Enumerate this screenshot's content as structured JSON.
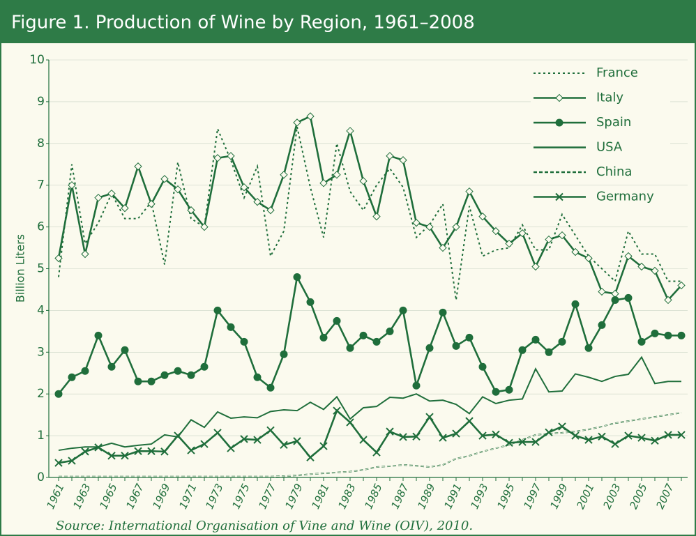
{
  "chart_data": {
    "type": "line",
    "title": "Figure 1. Production of Wine by Region, 1961–2008",
    "ylabel": "Billion Liters",
    "source": "Source: International Organisation of Vine and Wine (OIV), 2010.",
    "categories": [
      "1961",
      null,
      "1963",
      null,
      "1965",
      null,
      "1967",
      null,
      "1969",
      null,
      "1971",
      null,
      "1973",
      null,
      "1975",
      null,
      "1977",
      null,
      "1979",
      null,
      "1981",
      null,
      "1983",
      null,
      "1985",
      null,
      "1987",
      null,
      "1989",
      null,
      "1991",
      null,
      "1993",
      null,
      "1995",
      null,
      "1997",
      null,
      "1999",
      null,
      "2001",
      null,
      "2003",
      null,
      "2005",
      null,
      "2007",
      null
    ],
    "ylim": [
      0,
      10
    ],
    "yticks": [
      0,
      1,
      2,
      3,
      4,
      5,
      6,
      7,
      8,
      9,
      10
    ],
    "grid": true,
    "legend_position": "upper right",
    "series": [
      {
        "name": "France",
        "color": "#1f6e3b",
        "line_style": "dotted",
        "marker": null,
        "values": [
          4.8,
          7.5,
          5.6,
          6.1,
          6.8,
          6.2,
          6.2,
          6.6,
          5.1,
          7.55,
          6.2,
          6.0,
          8.35,
          7.6,
          6.7,
          7.45,
          5.3,
          5.9,
          8.4,
          6.95,
          5.75,
          8.0,
          6.85,
          6.4,
          7.0,
          7.4,
          6.95,
          5.75,
          6.05,
          6.55,
          4.25,
          6.5,
          5.3,
          5.45,
          5.5,
          6.05,
          5.45,
          5.45,
          6.3,
          5.8,
          5.3,
          5.0,
          4.7,
          5.9,
          5.35,
          5.35,
          4.7,
          4.7
        ]
      },
      {
        "name": "Italy",
        "color": "#1f6e3b",
        "line_style": "solid",
        "marker": "diamond",
        "values": [
          5.25,
          7.0,
          5.35,
          6.7,
          6.8,
          6.45,
          7.45,
          6.55,
          7.15,
          6.9,
          6.4,
          6.0,
          7.65,
          7.7,
          6.95,
          6.6,
          6.4,
          7.25,
          8.5,
          8.65,
          7.05,
          7.25,
          8.3,
          7.1,
          6.25,
          7.7,
          7.6,
          6.1,
          6.0,
          5.5,
          6.0,
          6.85,
          6.25,
          5.9,
          5.6,
          5.85,
          5.05,
          5.7,
          5.8,
          5.4,
          5.25,
          4.45,
          4.4,
          5.3,
          5.05,
          4.95,
          4.25,
          4.6
        ]
      },
      {
        "name": "Spain",
        "color": "#1f6e3b",
        "line_style": "solid",
        "marker": "circle",
        "values": [
          2.0,
          2.4,
          2.55,
          3.4,
          2.65,
          3.05,
          2.3,
          2.3,
          2.45,
          2.55,
          2.45,
          2.65,
          4.0,
          3.6,
          3.25,
          2.4,
          2.15,
          2.95,
          4.8,
          4.2,
          3.35,
          3.75,
          3.1,
          3.4,
          3.25,
          3.5,
          4.0,
          2.2,
          3.1,
          3.95,
          3.15,
          3.35,
          2.65,
          2.05,
          2.1,
          3.05,
          3.3,
          3.0,
          3.25,
          4.15,
          3.1,
          3.65,
          4.25,
          4.3,
          3.25,
          3.45,
          3.4,
          3.4
        ]
      },
      {
        "name": "USA",
        "color": "#1f6e3b",
        "line_style": "solid",
        "marker": null,
        "values": [
          0.65,
          0.7,
          0.73,
          0.73,
          0.82,
          0.73,
          0.77,
          0.8,
          1.02,
          0.97,
          1.38,
          1.2,
          1.57,
          1.42,
          1.45,
          1.43,
          1.58,
          1.62,
          1.6,
          1.8,
          1.63,
          1.93,
          1.4,
          1.67,
          1.7,
          1.92,
          1.9,
          2.0,
          1.83,
          1.85,
          1.75,
          1.53,
          1.93,
          1.77,
          1.85,
          1.88,
          2.6,
          2.05,
          2.07,
          2.48,
          2.4,
          2.3,
          2.42,
          2.47,
          2.88,
          2.25,
          2.3,
          2.3
        ]
      },
      {
        "name": "China",
        "color": "#1f6e3b",
        "line_style": "dashed",
        "marker": null,
        "values": [
          0.02,
          0.02,
          0.02,
          0.02,
          0.02,
          0.02,
          0.02,
          0.02,
          0.02,
          0.02,
          0.02,
          0.02,
          0.02,
          0.02,
          0.02,
          0.02,
          0.02,
          0.03,
          0.05,
          0.08,
          0.1,
          0.12,
          0.14,
          0.18,
          0.25,
          0.27,
          0.3,
          0.28,
          0.25,
          0.3,
          0.45,
          0.52,
          0.62,
          0.7,
          0.78,
          0.9,
          1.02,
          1.05,
          1.07,
          1.1,
          1.15,
          1.22,
          1.3,
          1.35,
          1.4,
          1.45,
          1.5,
          1.55
        ]
      },
      {
        "name": "Germany",
        "color": "#1f6e3b",
        "line_style": "solid",
        "marker": "x",
        "values": [
          0.35,
          0.4,
          0.62,
          0.72,
          0.52,
          0.52,
          0.63,
          0.63,
          0.62,
          1.0,
          0.65,
          0.8,
          1.07,
          0.7,
          0.92,
          0.9,
          1.13,
          0.78,
          0.87,
          0.48,
          0.75,
          1.6,
          1.32,
          0.9,
          0.6,
          1.1,
          0.97,
          0.98,
          1.45,
          0.95,
          1.05,
          1.35,
          1.0,
          1.03,
          0.83,
          0.85,
          0.85,
          1.08,
          1.22,
          1.0,
          0.9,
          0.98,
          0.8,
          1.0,
          0.95,
          0.88,
          1.02,
          1.02
        ]
      }
    ]
  }
}
